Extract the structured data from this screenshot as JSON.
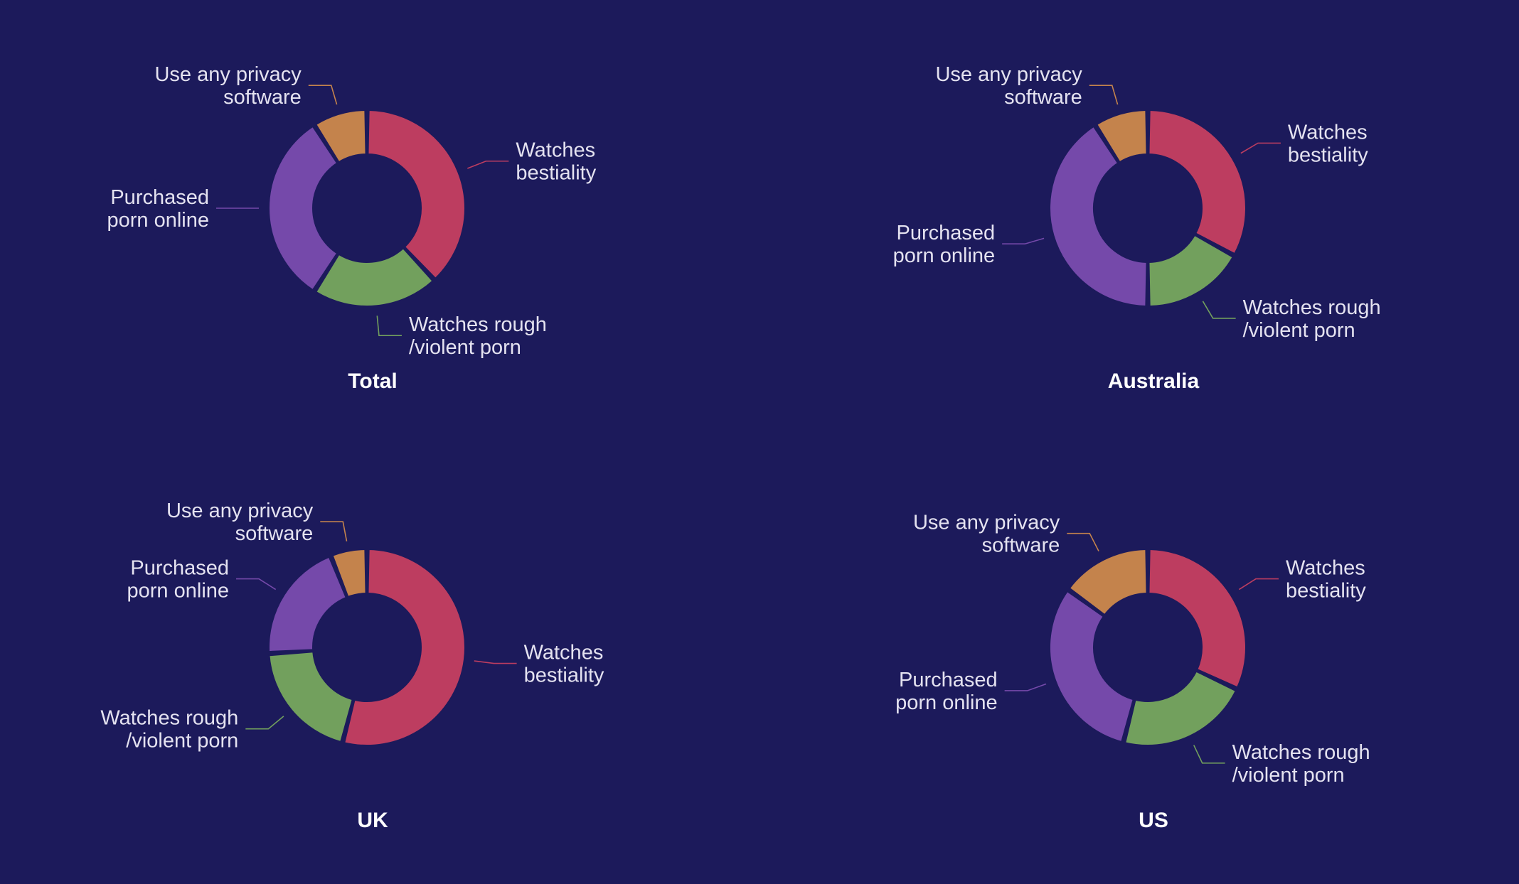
{
  "colors": {
    "background": "#1c1a5b",
    "Watches bestiality": "#bd3d60",
    "Watches rough /violent porn": "#72a05d",
    "Purchased porn online": "#7549aa",
    "Use any privacy software": "#c4834c"
  },
  "chart_data": [
    {
      "type": "pie",
      "title": "Total",
      "slices": [
        {
          "label": "Watches bestiality",
          "value": 38
        },
        {
          "label": "Watches rough /violent porn",
          "value": 21
        },
        {
          "label": "Purchased porn online",
          "value": 32
        },
        {
          "label": "Use any privacy software",
          "value": 9
        }
      ]
    },
    {
      "type": "pie",
      "title": "Australia",
      "slices": [
        {
          "label": "Watches bestiality",
          "value": 33
        },
        {
          "label": "Watches rough /violent porn",
          "value": 17
        },
        {
          "label": "Purchased porn online",
          "value": 41
        },
        {
          "label": "Use any privacy software",
          "value": 9
        }
      ]
    },
    {
      "type": "pie",
      "title": "UK",
      "slices": [
        {
          "label": "Watches bestiality",
          "value": 54
        },
        {
          "label": "Watches rough /violent porn",
          "value": 20
        },
        {
          "label": "Purchased porn online",
          "value": 20
        },
        {
          "label": "Use any privacy software",
          "value": 6
        }
      ]
    },
    {
      "type": "pie",
      "title": "US",
      "slices": [
        {
          "label": "Watches bestiality",
          "value": 32
        },
        {
          "label": "Watches rough /violent porn",
          "value": 22
        },
        {
          "label": "Purchased porn online",
          "value": 31
        },
        {
          "label": "Use any privacy software",
          "value": 15
        }
      ]
    }
  ]
}
